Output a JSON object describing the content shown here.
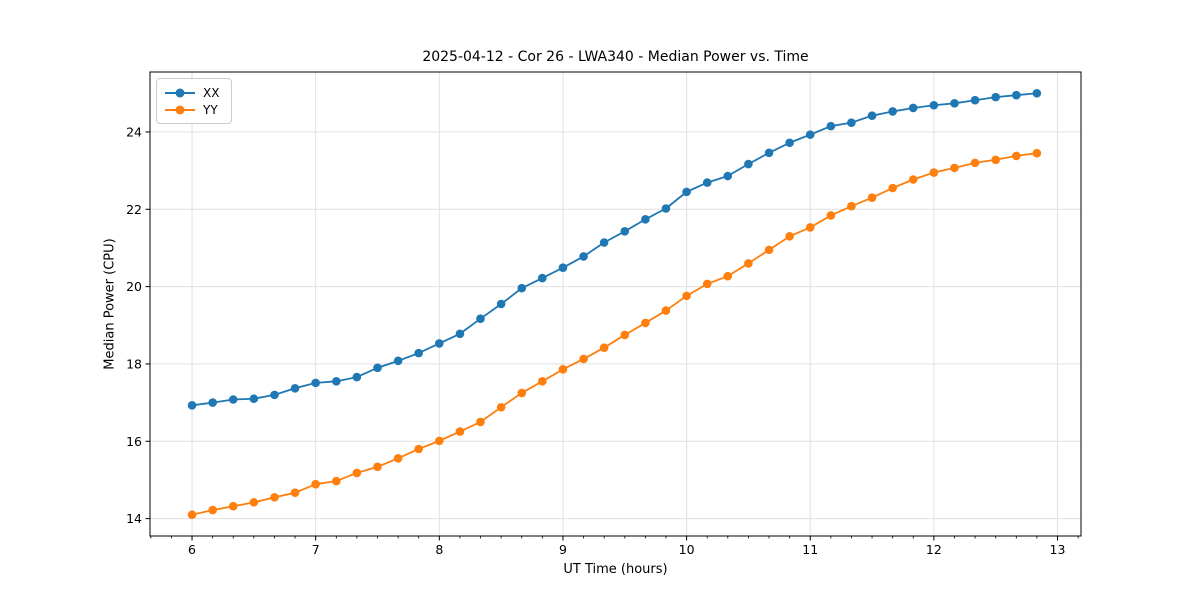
{
  "chart_data": {
    "type": "line",
    "title": "2025-04-12 - Cor 26 - LWA340 - Median Power vs. Time",
    "xlabel": "UT Time (hours)",
    "ylabel": "Median Power (CPU)",
    "xlim": [
      5.66,
      13.19
    ],
    "ylim": [
      13.55,
      25.55
    ],
    "xticks": [
      6,
      7,
      8,
      9,
      10,
      11,
      12,
      13
    ],
    "yticks": [
      14,
      16,
      18,
      20,
      22,
      24
    ],
    "x_minor_step": 0.1667,
    "grid": true,
    "legend_position": "upper-left",
    "marker": "circle",
    "x": [
      6.0,
      6.167,
      6.333,
      6.5,
      6.667,
      6.833,
      7.0,
      7.167,
      7.333,
      7.5,
      7.667,
      7.833,
      8.0,
      8.167,
      8.333,
      8.5,
      8.667,
      8.833,
      9.0,
      9.167,
      9.333,
      9.5,
      9.667,
      9.833,
      10.0,
      10.167,
      10.333,
      10.5,
      10.667,
      10.833,
      11.0,
      11.167,
      11.333,
      11.5,
      11.667,
      11.833,
      12.0,
      12.167,
      12.333,
      12.5,
      12.667,
      12.833
    ],
    "series": [
      {
        "name": "XX",
        "color": "#1f77b4",
        "values": [
          16.93,
          17.0,
          17.08,
          17.1,
          17.2,
          17.37,
          17.51,
          17.55,
          17.66,
          17.9,
          18.08,
          18.28,
          18.53,
          18.78,
          19.17,
          19.55,
          19.96,
          20.22,
          20.49,
          20.78,
          21.14,
          21.43,
          21.74,
          22.02,
          22.45,
          22.69,
          22.86,
          23.17,
          23.46,
          23.72,
          23.93,
          24.15,
          24.24,
          24.42,
          24.53,
          24.62,
          24.69,
          24.74,
          24.82,
          24.9,
          24.95,
          25.0
        ]
      },
      {
        "name": "YY",
        "color": "#ff7f0e",
        "values": [
          14.1,
          14.22,
          14.32,
          14.42,
          14.55,
          14.67,
          14.89,
          14.97,
          15.18,
          15.34,
          15.56,
          15.8,
          16.01,
          16.25,
          16.5,
          16.88,
          17.25,
          17.55,
          17.86,
          18.13,
          18.42,
          18.75,
          19.06,
          19.38,
          19.76,
          20.07,
          20.27,
          20.6,
          20.95,
          21.3,
          21.53,
          21.84,
          22.08,
          22.3,
          22.55,
          22.77,
          22.95,
          23.07,
          23.2,
          23.28,
          23.38,
          23.45
        ]
      }
    ]
  }
}
